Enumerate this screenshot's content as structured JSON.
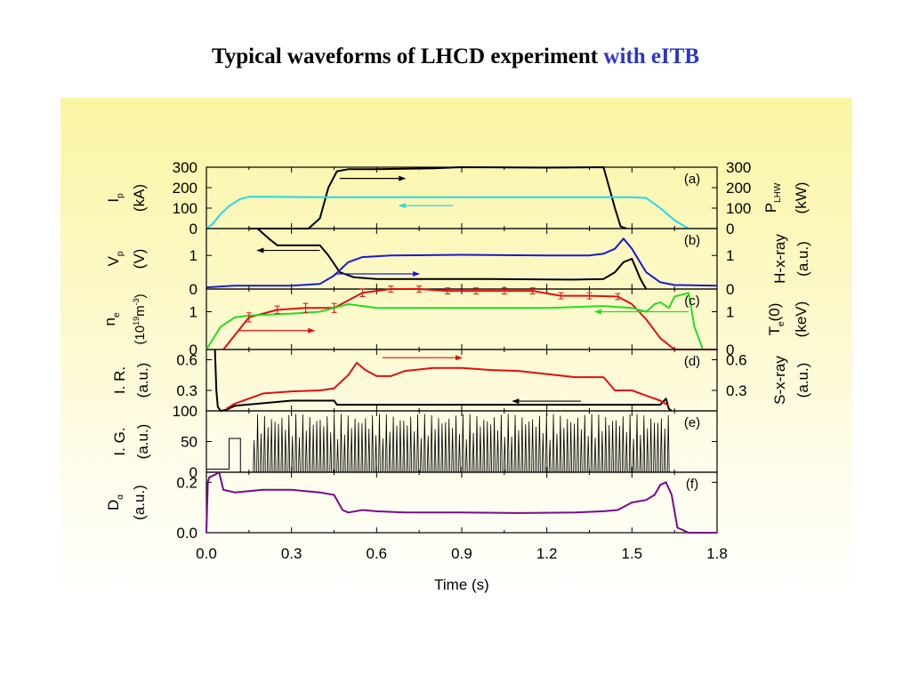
{
  "title": {
    "main": "Typical waveforms of LHCD experiment",
    "highlight": "with eITB"
  },
  "colors": {
    "black": "#000000",
    "cyan": "#22d8e8",
    "blue": "#1a1ad0",
    "red": "#e01010",
    "green": "#22dd22",
    "purple": "#7a0a8a"
  },
  "chart_data": {
    "type": "line",
    "xlabel": "Time (s)",
    "xlim": [
      0.0,
      1.8
    ],
    "xticks": [
      "0.0",
      "0.3",
      "0.6",
      "0.9",
      "1.2",
      "1.5",
      "1.8"
    ],
    "panels": [
      {
        "tag": "(a)",
        "left_label": [
          "I",
          "p",
          "(kA)"
        ],
        "right_label": [
          "P",
          "LHW",
          "(kW)"
        ],
        "ylim": [
          0,
          300
        ],
        "yticks": [
          "300",
          "200",
          "100",
          "0"
        ],
        "right_yticks": [
          "300",
          "200",
          "100",
          "0"
        ],
        "series": [
          {
            "color": "black",
            "x": [
              0.15,
              0.36,
              0.4,
              0.43,
              0.46,
              0.5,
              0.6,
              0.8,
              0.9,
              1.2,
              1.4,
              1.42,
              1.44,
              1.46,
              1.48
            ],
            "y": [
              0,
              0,
              50,
              200,
              280,
              290,
              290,
              295,
              300,
              298,
              300,
              200,
              100,
              10,
              0
            ]
          },
          {
            "color": "cyan",
            "x": [
              0.0,
              0.02,
              0.05,
              0.08,
              0.12,
              0.15,
              0.2,
              0.4,
              0.8,
              1.2,
              1.5,
              1.55,
              1.6,
              1.65,
              1.7
            ],
            "y": [
              0,
              20,
              70,
              110,
              145,
              155,
              155,
              153,
              153,
              153,
              153,
              150,
              100,
              40,
              0
            ]
          }
        ],
        "arrows": [
          {
            "color": "black",
            "x1": 0.47,
            "x2": 0.7,
            "y": 245
          },
          {
            "color": "cyan",
            "x1": 0.87,
            "x2": 0.68,
            "y": 112
          }
        ]
      },
      {
        "tag": "(b)",
        "left_label": [
          "V",
          "p",
          "(V)"
        ],
        "right_label": [
          "H-x-ray",
          "(a.u.)"
        ],
        "ylim": [
          0,
          1.8
        ],
        "yticks": [
          "1",
          "0"
        ],
        "yticks_v": [
          1,
          0
        ],
        "right_yticks": [
          "1",
          "0"
        ],
        "right_yticks_v": [
          1,
          0
        ],
        "series": [
          {
            "color": "black",
            "x": [
              0.18,
              0.22,
              0.25,
              0.3,
              0.35,
              0.4,
              0.43,
              0.47,
              0.52,
              0.6,
              1.0,
              1.3,
              1.4,
              1.44,
              1.47,
              1.5,
              1.53,
              1.55
            ],
            "y": [
              1.8,
              1.5,
              1.3,
              1.3,
              1.3,
              1.3,
              1.0,
              0.5,
              0.35,
              0.3,
              0.3,
              0.28,
              0.3,
              0.5,
              0.8,
              0.9,
              0.3,
              0.0
            ]
          },
          {
            "color": "blue",
            "x": [
              0.0,
              0.1,
              0.3,
              0.4,
              0.45,
              0.5,
              0.55,
              0.65,
              0.9,
              1.2,
              1.35,
              1.4,
              1.44,
              1.47,
              1.5,
              1.55,
              1.6,
              1.65,
              1.8
            ],
            "y": [
              0.05,
              0.1,
              0.1,
              0.15,
              0.4,
              0.8,
              0.95,
              1.0,
              1.02,
              1.0,
              1.0,
              1.05,
              1.2,
              1.5,
              1.2,
              0.5,
              0.2,
              0.12,
              0.1
            ]
          }
        ],
        "arrows": [
          {
            "color": "black",
            "x1": 0.4,
            "x2": 0.18,
            "y": 1.15
          },
          {
            "color": "blue",
            "x1": 0.45,
            "x2": 0.75,
            "y": 0.45
          }
        ]
      },
      {
        "tag": "(c)",
        "left_label": [
          "n",
          "e",
          "(10",
          "19",
          "m",
          "-3",
          ")"
        ],
        "right_label": [
          "T",
          "e",
          "(0)",
          "(keV)"
        ],
        "ylim": [
          0,
          1.6
        ],
        "yticks": [
          "1",
          "0"
        ],
        "yticks_v": [
          1,
          0
        ],
        "right_yticks": [
          "1",
          "0"
        ],
        "right_yticks_v": [
          1,
          0
        ],
        "series": [
          {
            "color": "red",
            "x": [
              0.06,
              0.15,
              0.25,
              0.35,
              0.45,
              0.55,
              0.65,
              0.75,
              0.85,
              0.95,
              1.05,
              1.15,
              1.25,
              1.35,
              1.45,
              1.5,
              1.55,
              1.6,
              1.65,
              1.8
            ],
            "y": [
              0.0,
              0.85,
              1.05,
              1.1,
              1.1,
              1.5,
              1.6,
              1.6,
              1.55,
              1.55,
              1.55,
              1.55,
              1.42,
              1.42,
              1.4,
              1.2,
              0.8,
              0.3,
              0.0,
              0.0
            ]
          },
          {
            "color": "green",
            "x": [
              0.0,
              0.05,
              0.1,
              0.15,
              0.3,
              0.4,
              0.45,
              0.5,
              0.6,
              0.8,
              1.0,
              1.2,
              1.4,
              1.5,
              1.55,
              1.58,
              1.6,
              1.63,
              1.65,
              1.7,
              1.72,
              1.75
            ],
            "y": [
              0.0,
              0.6,
              0.85,
              0.9,
              0.95,
              1.0,
              1.1,
              1.2,
              1.1,
              1.1,
              1.1,
              1.1,
              1.15,
              1.1,
              1.0,
              1.2,
              1.25,
              1.1,
              1.4,
              1.5,
              0.6,
              0.0
            ]
          }
        ],
        "error_bars": {
          "color": "red",
          "x": [
            0.15,
            0.25,
            0.35,
            0.45,
            0.55,
            0.65,
            0.75,
            0.85,
            0.95,
            1.05,
            1.15,
            1.25,
            1.35,
            1.45
          ],
          "y": [
            0.85,
            1.05,
            1.1,
            1.1,
            1.5,
            1.6,
            1.6,
            1.55,
            1.55,
            1.55,
            1.55,
            1.42,
            1.42,
            1.4
          ],
          "err": [
            0.12,
            0.1,
            0.12,
            0.12,
            0.1,
            0.08,
            0.08,
            0.08,
            0.08,
            0.08,
            0.08,
            0.08,
            0.08,
            0.08
          ]
        },
        "arrows": [
          {
            "color": "red",
            "x1": 0.11,
            "x2": 0.38,
            "y": 0.5
          },
          {
            "color": "green",
            "x1": 1.7,
            "x2": 1.37,
            "y": 1.0
          }
        ]
      },
      {
        "tag": "(d)",
        "left_label": [
          "I. R.",
          "(a.u.)"
        ],
        "right_label": [
          "S-x-ray",
          "(a.u.)"
        ],
        "ylim": [
          0.1,
          0.7
        ],
        "yticks": [
          "0.6",
          "0.3"
        ],
        "yticks_v": [
          0.6,
          0.3
        ],
        "right_yticks": [
          "0.6",
          "0.3"
        ],
        "right_yticks_v": [
          0.6,
          0.3
        ],
        "series": [
          {
            "color": "black",
            "x": [
              0.03,
              0.035,
              0.04,
              0.05,
              0.07,
              0.1,
              0.3,
              0.45,
              0.46,
              0.6,
              0.9,
              1.2,
              1.5,
              1.6,
              1.62,
              1.63,
              1.64
            ],
            "y": [
              0.7,
              0.3,
              0.14,
              0.1,
              0.11,
              0.15,
              0.2,
              0.2,
              0.16,
              0.16,
              0.16,
              0.16,
              0.16,
              0.16,
              0.22,
              0.12,
              0.1
            ]
          },
          {
            "color": "red",
            "x": [
              0.07,
              0.1,
              0.2,
              0.3,
              0.4,
              0.45,
              0.5,
              0.53,
              0.56,
              0.6,
              0.65,
              0.7,
              0.8,
              0.9,
              1.0,
              1.1,
              1.2,
              1.3,
              1.4,
              1.44,
              1.5,
              1.55,
              1.6,
              1.63
            ],
            "y": [
              0.12,
              0.17,
              0.27,
              0.29,
              0.3,
              0.32,
              0.45,
              0.57,
              0.5,
              0.44,
              0.44,
              0.49,
              0.52,
              0.52,
              0.5,
              0.49,
              0.46,
              0.43,
              0.43,
              0.3,
              0.3,
              0.25,
              0.2,
              0.15
            ]
          }
        ],
        "arrows": [
          {
            "color": "red",
            "x1": 0.62,
            "x2": 0.9,
            "y": 0.62
          },
          {
            "color": "black",
            "x1": 1.32,
            "x2": 1.08,
            "y": 0.195
          }
        ]
      },
      {
        "tag": "(e)",
        "left_label": [
          "I. G.",
          "(a.u.)"
        ],
        "ylim": [
          0,
          100
        ],
        "yticks": [
          "100",
          "50",
          "0"
        ],
        "yticks_v": [
          100,
          50,
          0
        ],
        "gas_puff": {
          "x_on": 0.08,
          "x_off": 0.12,
          "level": 55,
          "base": 5
        },
        "spikes": {
          "x_start": 0.165,
          "x_end": 1.625,
          "count": 120,
          "top": 95,
          "base": 0
        }
      },
      {
        "tag": "(f)",
        "left_label": [
          "D",
          "α",
          "(a.u.)"
        ],
        "ylim": [
          0,
          0.24
        ],
        "yticks": [
          "0.2",
          "0.0"
        ],
        "yticks_v": [
          0.2,
          0.0
        ],
        "series": [
          {
            "color": "purple",
            "x": [
              0.0,
              0.005,
              0.01,
              0.03,
              0.045,
              0.06,
              0.1,
              0.2,
              0.3,
              0.4,
              0.45,
              0.48,
              0.5,
              0.55,
              0.6,
              0.7,
              0.9,
              1.1,
              1.3,
              1.4,
              1.45,
              1.5,
              1.55,
              1.58,
              1.6,
              1.62,
              1.64,
              1.66,
              1.7,
              1.8
            ],
            "y": [
              0.0,
              0.2,
              0.22,
              0.23,
              0.24,
              0.17,
              0.16,
              0.17,
              0.17,
              0.16,
              0.15,
              0.09,
              0.08,
              0.09,
              0.085,
              0.08,
              0.08,
              0.078,
              0.08,
              0.085,
              0.09,
              0.12,
              0.13,
              0.15,
              0.19,
              0.2,
              0.15,
              0.02,
              0.0,
              0.0
            ]
          }
        ]
      }
    ]
  }
}
